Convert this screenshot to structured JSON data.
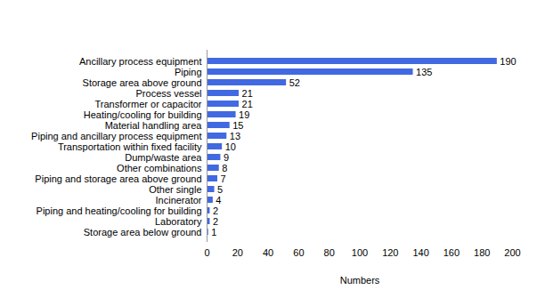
{
  "chart_data": {
    "type": "bar",
    "orientation": "horizontal",
    "categories": [
      "Ancillary process equipment",
      "Piping",
      "Storage area above ground",
      "Process vessel",
      "Transformer or capacitor",
      "Heating/cooling for building",
      "Material handling area",
      "Piping and ancillary process equipment",
      "Transportation within fixed facility",
      "Dump/waste area",
      "Other combinations",
      "Piping and storage area above ground",
      "Other single",
      "Incinerator",
      "Piping and heating/cooling for building",
      "Laboratory",
      "Storage area below ground"
    ],
    "values": [
      190,
      135,
      52,
      21,
      21,
      19,
      15,
      13,
      10,
      9,
      8,
      7,
      5,
      4,
      2,
      2,
      1
    ],
    "color": "#4169e1",
    "x_label": "Numbers",
    "xlim": [
      0,
      200
    ],
    "xticks": [
      0,
      20,
      40,
      60,
      80,
      100,
      120,
      140,
      160,
      180,
      200
    ],
    "grid": false,
    "data_labels": true
  }
}
